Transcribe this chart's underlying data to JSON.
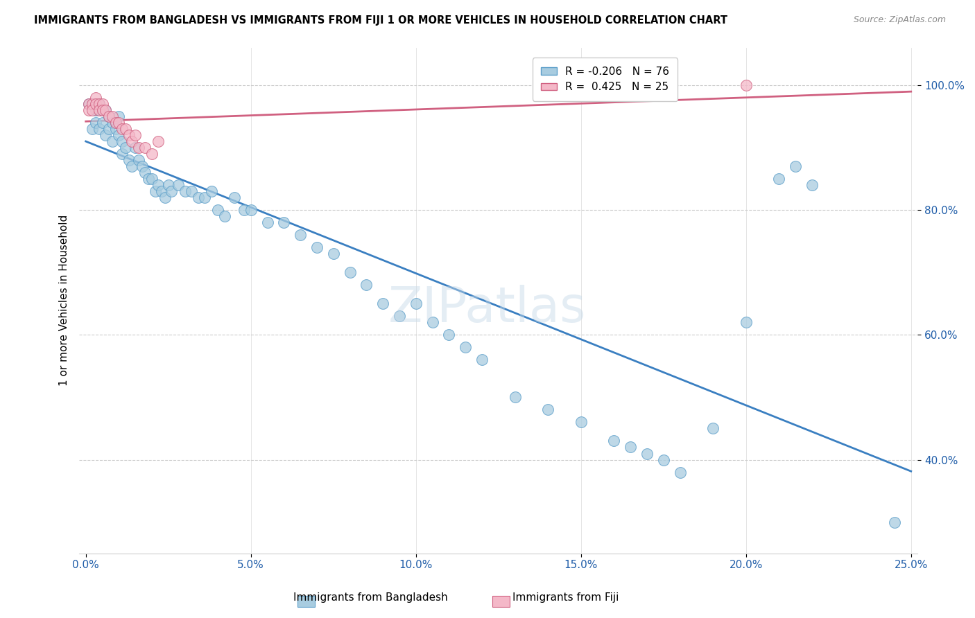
{
  "title": "IMMIGRANTS FROM BANGLADESH VS IMMIGRANTS FROM FIJI 1 OR MORE VEHICLES IN HOUSEHOLD CORRELATION CHART",
  "source": "Source: ZipAtlas.com",
  "ylabel": "1 or more Vehicles in Household",
  "xlabel_bangladesh": "Immigrants from Bangladesh",
  "xlabel_fiji": "Immigrants from Fiji",
  "xlim": [
    -0.002,
    0.252
  ],
  "ylim": [
    0.25,
    1.06
  ],
  "ytick_vals": [
    1.0,
    0.8,
    0.6,
    0.4
  ],
  "ytick_labels": [
    "100.0%",
    "80.0%",
    "60.0%",
    "40.0%"
  ],
  "xtick_vals": [
    0.0,
    0.05,
    0.1,
    0.15,
    0.2,
    0.25
  ],
  "xtick_labels": [
    "0.0%",
    "5.0%",
    "10.0%",
    "15.0%",
    "20.0%",
    "25.0%"
  ],
  "R_bangladesh": -0.206,
  "N_bangladesh": 76,
  "R_fiji": 0.425,
  "N_fiji": 25,
  "color_bangladesh": "#a8cce0",
  "color_fiji": "#f4b8c8",
  "edge_bangladesh": "#5b9ec9",
  "edge_fiji": "#d06080",
  "color_trend_bangladesh": "#3a7fc1",
  "color_trend_fiji": "#d06080",
  "bangladesh_x": [
    0.001,
    0.002,
    0.002,
    0.003,
    0.003,
    0.004,
    0.004,
    0.004,
    0.005,
    0.005,
    0.006,
    0.006,
    0.007,
    0.007,
    0.008,
    0.008,
    0.009,
    0.009,
    0.01,
    0.01,
    0.011,
    0.011,
    0.012,
    0.013,
    0.014,
    0.015,
    0.016,
    0.017,
    0.018,
    0.019,
    0.02,
    0.021,
    0.022,
    0.023,
    0.024,
    0.025,
    0.026,
    0.028,
    0.03,
    0.032,
    0.034,
    0.036,
    0.038,
    0.04,
    0.042,
    0.045,
    0.048,
    0.05,
    0.055,
    0.06,
    0.065,
    0.07,
    0.075,
    0.08,
    0.085,
    0.09,
    0.095,
    0.1,
    0.105,
    0.11,
    0.115,
    0.12,
    0.13,
    0.14,
    0.15,
    0.16,
    0.165,
    0.17,
    0.175,
    0.18,
    0.19,
    0.2,
    0.21,
    0.215,
    0.22,
    0.245
  ],
  "bangladesh_y": [
    0.97,
    0.97,
    0.93,
    0.96,
    0.94,
    0.97,
    0.96,
    0.93,
    0.96,
    0.94,
    0.96,
    0.92,
    0.95,
    0.93,
    0.94,
    0.91,
    0.94,
    0.93,
    0.95,
    0.92,
    0.91,
    0.89,
    0.9,
    0.88,
    0.87,
    0.9,
    0.88,
    0.87,
    0.86,
    0.85,
    0.85,
    0.83,
    0.84,
    0.83,
    0.82,
    0.84,
    0.83,
    0.84,
    0.83,
    0.83,
    0.82,
    0.82,
    0.83,
    0.8,
    0.79,
    0.82,
    0.8,
    0.8,
    0.78,
    0.78,
    0.76,
    0.74,
    0.73,
    0.7,
    0.68,
    0.65,
    0.63,
    0.65,
    0.62,
    0.6,
    0.58,
    0.56,
    0.5,
    0.48,
    0.46,
    0.43,
    0.42,
    0.41,
    0.4,
    0.38,
    0.45,
    0.62,
    0.85,
    0.87,
    0.84,
    0.3
  ],
  "fiji_x": [
    0.001,
    0.001,
    0.002,
    0.002,
    0.003,
    0.003,
    0.004,
    0.004,
    0.005,
    0.005,
    0.006,
    0.007,
    0.008,
    0.009,
    0.01,
    0.011,
    0.012,
    0.013,
    0.014,
    0.015,
    0.016,
    0.018,
    0.02,
    0.022,
    0.2
  ],
  "fiji_y": [
    0.97,
    0.96,
    0.97,
    0.96,
    0.98,
    0.97,
    0.97,
    0.96,
    0.97,
    0.96,
    0.96,
    0.95,
    0.95,
    0.94,
    0.94,
    0.93,
    0.93,
    0.92,
    0.91,
    0.92,
    0.9,
    0.9,
    0.89,
    0.91,
    1.0
  ]
}
